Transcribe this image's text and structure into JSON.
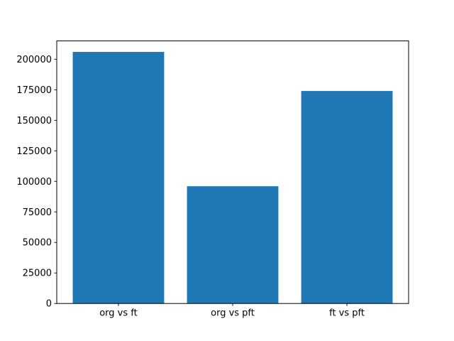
{
  "chart_data": {
    "type": "bar",
    "title": "",
    "xlabel": "",
    "ylabel": "",
    "categories": [
      "org vs ft",
      "org vs pft",
      "ft vs pft"
    ],
    "values": [
      206000,
      96000,
      174000
    ],
    "ylim": [
      0,
      215000
    ],
    "yticks": [
      0,
      25000,
      50000,
      75000,
      100000,
      125000,
      150000,
      175000,
      200000
    ],
    "bar_color": "#1f77b4",
    "frame_color": "#000000",
    "background_color": "#ffffff",
    "grid": false,
    "legend": null
  }
}
